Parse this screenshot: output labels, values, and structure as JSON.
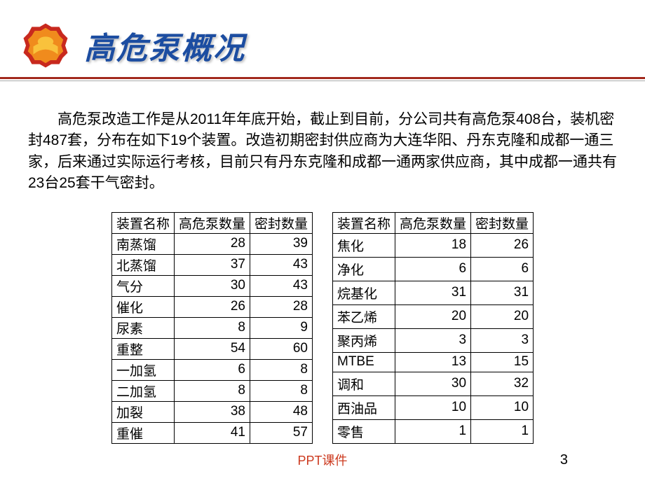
{
  "header": {
    "title": "高危泵概况"
  },
  "colors": {
    "title_color": "#1c4da1",
    "divider_red": "#a22a1e",
    "divider_gray": "#a9a9a9",
    "footer_red": "#cc3a1f",
    "logo_red": "#c8291e",
    "logo_orange": "#f08b1d",
    "logo_yellow": "#f9c23c",
    "background": "#ffffff"
  },
  "body": {
    "paragraph": "高危泵改造工作是从2011年年底开始，截止到目前，分公司共有高危泵408台，装机密封487套，分布在如下19个装置。改造初期密封供应商为大连华阳、丹东克隆和成都一通三家，后来通过实际运行考核，目前只有丹东克隆和成都一通两家供应商，其中成都一通共有23台25套干气密封。"
  },
  "table_left": {
    "headers": [
      "装置名称",
      "高危泵数量",
      "密封数量"
    ],
    "rows": [
      [
        "南蒸馏",
        "28",
        "39"
      ],
      [
        "北蒸馏",
        "37",
        "43"
      ],
      [
        "气分",
        "30",
        "43"
      ],
      [
        "催化",
        "26",
        "28"
      ],
      [
        "尿素",
        "8",
        "9"
      ],
      [
        "重整",
        "54",
        "60"
      ],
      [
        "一加氢",
        "6",
        "8"
      ],
      [
        "二加氢",
        "8",
        "8"
      ],
      [
        "加裂",
        "38",
        "48"
      ],
      [
        "重催",
        "41",
        "57"
      ]
    ]
  },
  "table_right": {
    "headers": [
      "装置名称",
      "高危泵数量",
      "密封数量"
    ],
    "rows": [
      [
        "焦化",
        "18",
        "26"
      ],
      [
        "净化",
        "6",
        "6"
      ],
      [
        "烷基化",
        "31",
        "31"
      ],
      [
        "苯乙烯",
        "20",
        "20"
      ],
      [
        "聚丙烯",
        "3",
        "3"
      ],
      [
        "MTBE",
        "13",
        "15"
      ],
      [
        "调和",
        "30",
        "32"
      ],
      [
        "西油品",
        "10",
        "10"
      ],
      [
        "零售",
        "1",
        "1"
      ]
    ]
  },
  "footer": {
    "label": "PPT课件",
    "page": "3"
  }
}
